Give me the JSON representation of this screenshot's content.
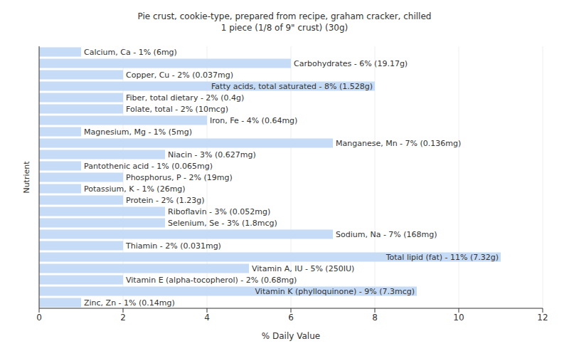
{
  "chart_data": {
    "type": "bar",
    "orientation": "horizontal",
    "title": "Pie crust, cookie-type, prepared from recipe, graham cracker, chilled",
    "subtitle": "1 piece (1/8 of 9\" crust) (30g)",
    "x_label": "% Daily Value",
    "y_label": "Nutrient",
    "categories": [
      null,
      null,
      null,
      null,
      null,
      null,
      null,
      null,
      null,
      null,
      null,
      null,
      null,
      null,
      null,
      null,
      null,
      null,
      null,
      null,
      null,
      null,
      null
    ],
    "values": [
      1,
      6,
      2,
      8,
      2,
      2,
      4,
      1,
      7,
      3,
      1,
      2,
      1,
      2,
      3,
      3,
      7,
      2,
      11,
      5,
      2,
      9,
      1
    ],
    "value_labels": [
      "Calcium, Ca - 1% (6mg)",
      "Carbohydrates - 6% (19.17g)",
      "Copper, Cu - 2% (0.037mg)",
      "Fatty acids, total saturated - 8% (1.528g)",
      "Fiber, total dietary - 2% (0.4g)",
      "Folate, total - 2% (10mcg)",
      "Iron, Fe - 4% (0.64mg)",
      "Magnesium, Mg - 1% (5mg)",
      "Manganese, Mn - 7% (0.136mg)",
      "Niacin - 3% (0.627mg)",
      "Pantothenic acid - 1% (0.065mg)",
      "Phosphorus, P - 2% (19mg)",
      "Potassium, K - 1% (26mg)",
      "Protein - 2% (1.23g)",
      "Riboflavin - 3% (0.052mg)",
      "Selenium, Se - 3% (1.8mcg)",
      "Sodium, Na - 7% (168mg)",
      "Thiamin - 2% (0.031mg)",
      "Total lipid (fat) - 11% (7.32g)",
      "Vitamin A, IU - 5% (250IU)",
      "Vitamin E (alpha-tocopherol) - 2% (0.68mg)",
      "Vitamin K (phylloquinone) - 9% (7.3mcg)",
      "Zinc, Zn - 1% (0.14mg)"
    ],
    "data_labels": true,
    "tick_labels": "x",
    "color": "#c6dbf5",
    "xlim": [
      0,
      12
    ],
    "xticks": [
      0,
      2,
      4,
      6,
      8,
      10,
      12
    ],
    "grid": true
  }
}
